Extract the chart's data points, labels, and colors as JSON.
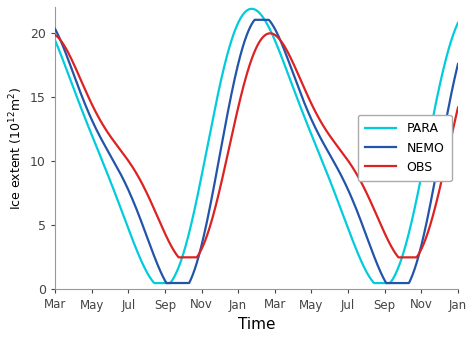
{
  "xlabel": "Time",
  "ylabel": "Ice extent (10$^{12}$m$^2$)",
  "x_tick_labels": [
    "Mar",
    "May",
    "Jul",
    "Sep",
    "Nov",
    "Jan",
    "Mar",
    "May",
    "Jul",
    "Sep",
    "Nov",
    "Jan"
  ],
  "ylim": [
    0,
    22
  ],
  "yticks": [
    0,
    5,
    10,
    15,
    20
  ],
  "line_colors": {
    "NEMO": "#2255aa",
    "PARA": "#00ccdd",
    "OBS": "#dd2222"
  },
  "line_widths": {
    "NEMO": 1.6,
    "PARA": 1.6,
    "OBS": 1.6
  },
  "background_color": "#ffffff",
  "tick_positions": [
    0,
    2,
    4,
    6,
    8,
    10,
    12,
    14,
    16,
    18,
    20,
    22
  ],
  "xlim": [
    0,
    22
  ]
}
